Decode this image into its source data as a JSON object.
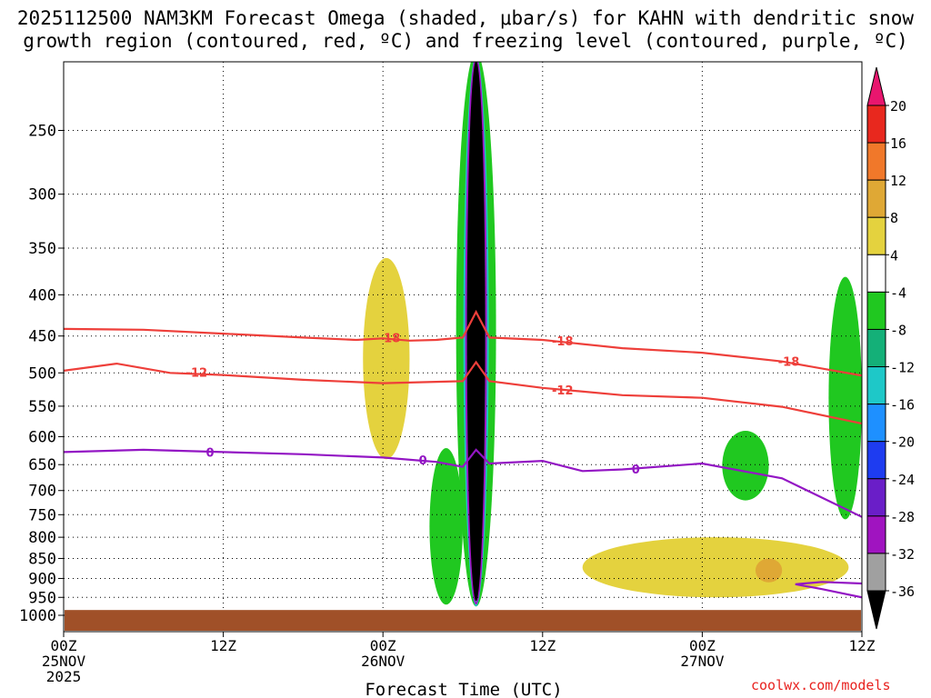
{
  "title_line1": "2025112500 NAM3KM Forecast Omega (shaded, μbar/s) for KAHN with dendritic snow",
  "title_line2": "growth region (contoured, red, ºC) and freezing level (contoured, purple, ºC)",
  "credit": "coolwx.com/models",
  "chart_data": {
    "type": "heatmap",
    "title": "2025112500 NAM3KM Forecast Omega (shaded, μbar/s) for KAHN with dendritic snow growth region (contoured, red, ºC) and freezing level (contoured, purple, ºC)",
    "xlabel": "Forecast Time (UTC)",
    "ylabel": "",
    "x_range_hours": [
      0,
      60
    ],
    "y_range_hpa": [
      200,
      1040
    ],
    "x_ticks": [
      {
        "hour": 0,
        "lines": [
          "00Z",
          "25NOV",
          "2025"
        ]
      },
      {
        "hour": 12,
        "lines": [
          "12Z"
        ]
      },
      {
        "hour": 24,
        "lines": [
          "00Z",
          "26NOV"
        ]
      },
      {
        "hour": 36,
        "lines": [
          "12Z"
        ]
      },
      {
        "hour": 48,
        "lines": [
          "00Z",
          "27NOV"
        ]
      },
      {
        "hour": 60,
        "lines": [
          "12Z"
        ]
      }
    ],
    "y_ticks": [
      250,
      300,
      350,
      400,
      450,
      500,
      550,
      600,
      650,
      700,
      750,
      800,
      850,
      900,
      950,
      1000
    ],
    "grid": true,
    "colorbar": {
      "position": "right",
      "labels": [
        "20",
        "16",
        "12",
        "8",
        "4",
        "-4",
        "-8",
        "-12",
        "-16",
        "-20",
        "-24",
        "-28",
        "-32",
        "-36"
      ],
      "colors": [
        "#e8166e",
        "#e8281e",
        "#f0782a",
        "#dfa835",
        "#e4d23e",
        "#ffffff",
        "#20c820",
        "#14b078",
        "#1ec8c8",
        "#1e90ff",
        "#1e3cf0",
        "#6a1ec8",
        "#a014c0",
        "#a0a0a0",
        "#000000"
      ]
    },
    "contours": [
      {
        "label": "-18",
        "color": "#ee3f3a",
        "points": [
          [
            0,
            441
          ],
          [
            6,
            442
          ],
          [
            12,
            447
          ],
          [
            18,
            452
          ],
          [
            22,
            455
          ],
          [
            24,
            453
          ],
          [
            26,
            456
          ],
          [
            28,
            455
          ],
          [
            30,
            452
          ],
          [
            31,
            420
          ],
          [
            32,
            452
          ],
          [
            36,
            455
          ],
          [
            42,
            466
          ],
          [
            48,
            472
          ],
          [
            54,
            484
          ],
          [
            60,
            504
          ]
        ],
        "labels_at": [
          [
            24.5,
            452
          ],
          [
            37.5,
            456
          ],
          [
            54.5,
            484
          ]
        ]
      },
      {
        "label": "-12",
        "color": "#ee3f3a",
        "points": [
          [
            0,
            497
          ],
          [
            4,
            487
          ],
          [
            8,
            500
          ],
          [
            12,
            503
          ],
          [
            18,
            510
          ],
          [
            24,
            515
          ],
          [
            30,
            512
          ],
          [
            31,
            485
          ],
          [
            32,
            512
          ],
          [
            36,
            522
          ],
          [
            42,
            533
          ],
          [
            48,
            537
          ],
          [
            54,
            551
          ],
          [
            60,
            578
          ]
        ],
        "labels_at": [
          [
            10,
            499
          ],
          [
            37.5,
            525
          ]
        ]
      },
      {
        "label": "0",
        "color": "#9316c4",
        "points": [
          [
            0,
            627
          ],
          [
            6,
            623
          ],
          [
            12,
            627
          ],
          [
            18,
            631
          ],
          [
            24,
            637
          ],
          [
            28,
            645
          ],
          [
            30,
            654
          ],
          [
            31,
            623
          ],
          [
            32,
            648
          ],
          [
            36,
            643
          ],
          [
            39,
            662
          ],
          [
            42,
            659
          ],
          [
            48,
            648
          ],
          [
            54,
            676
          ],
          [
            60,
            755
          ]
        ],
        "labels_at": [
          [
            11,
            627
          ],
          [
            27,
            641
          ],
          [
            43,
            658
          ]
        ]
      },
      {
        "label": "0",
        "color": "#9316c4",
        "points": [
          [
            60,
            913
          ],
          [
            57,
            909
          ],
          [
            55,
            915
          ],
          [
            57,
            928
          ],
          [
            60,
            950
          ]
        ],
        "labels_at": []
      }
    ],
    "omega_regions": [
      {
        "value_range": [
          -36,
          -32
        ],
        "color": "#000000",
        "hours": [
          30.3,
          31.7
        ],
        "hpa": [
          205,
          960
        ],
        "note": "strong upward motion core"
      },
      {
        "value_range": [
          -12,
          -4
        ],
        "color": "#20c820",
        "hours": [
          29.5,
          32.5
        ],
        "hpa": [
          200,
          975
        ]
      },
      {
        "value_range": [
          -8,
          -4
        ],
        "color": "#20c820",
        "hours": [
          27.5,
          30
        ],
        "hpa": [
          620,
          970
        ]
      },
      {
        "value_range": [
          -8,
          -4
        ],
        "color": "#20c820",
        "hours": [
          57.5,
          60
        ],
        "hpa": [
          380,
          760
        ]
      },
      {
        "value_range": [
          -8,
          -4
        ],
        "color": "#20c820",
        "hours": [
          49.5,
          53
        ],
        "hpa": [
          590,
          720
        ]
      },
      {
        "value_range": [
          4,
          8
        ],
        "color": "#e4d23e",
        "hours": [
          39,
          59
        ],
        "hpa": [
          800,
          950
        ]
      },
      {
        "value_range": [
          4,
          8
        ],
        "color": "#e4d23e",
        "hours": [
          22.5,
          26
        ],
        "hpa": [
          360,
          640
        ]
      },
      {
        "value_range": [
          8,
          12
        ],
        "color": "#dfa835",
        "hours": [
          52,
          54
        ],
        "hpa": [
          850,
          910
        ]
      }
    ],
    "ground_pressure_hpa": 985
  }
}
